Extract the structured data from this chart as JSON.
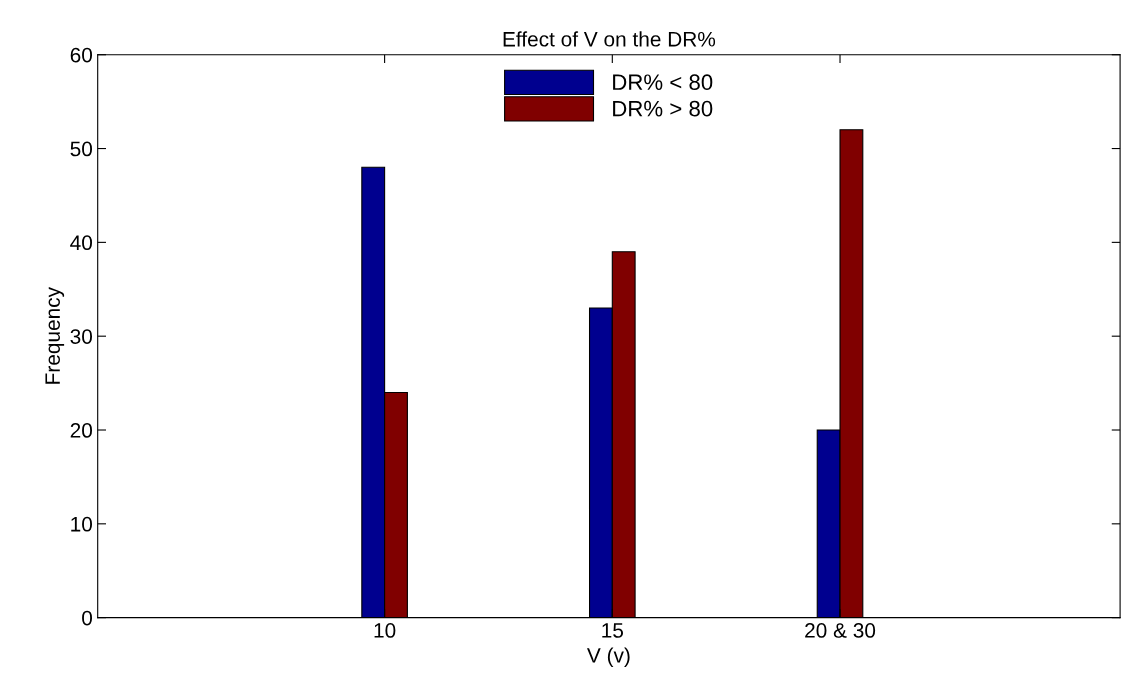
{
  "chart_data": {
    "type": "bar",
    "title": "Effect of V on the DR%",
    "xlabel": "V (v)",
    "ylabel": "Frequency",
    "categories": [
      "10",
      "15",
      "20 & 30"
    ],
    "series": [
      {
        "name": "DR% < 80",
        "color": "#00008f",
        "values": [
          48,
          33,
          20
        ]
      },
      {
        "name": "DR% > 80",
        "color": "#800000",
        "values": [
          24,
          39,
          52
        ]
      }
    ],
    "ylim": [
      0,
      60
    ],
    "yticks": [
      0,
      10,
      20,
      30,
      40,
      50,
      60
    ],
    "grid": false,
    "legend": "top"
  }
}
